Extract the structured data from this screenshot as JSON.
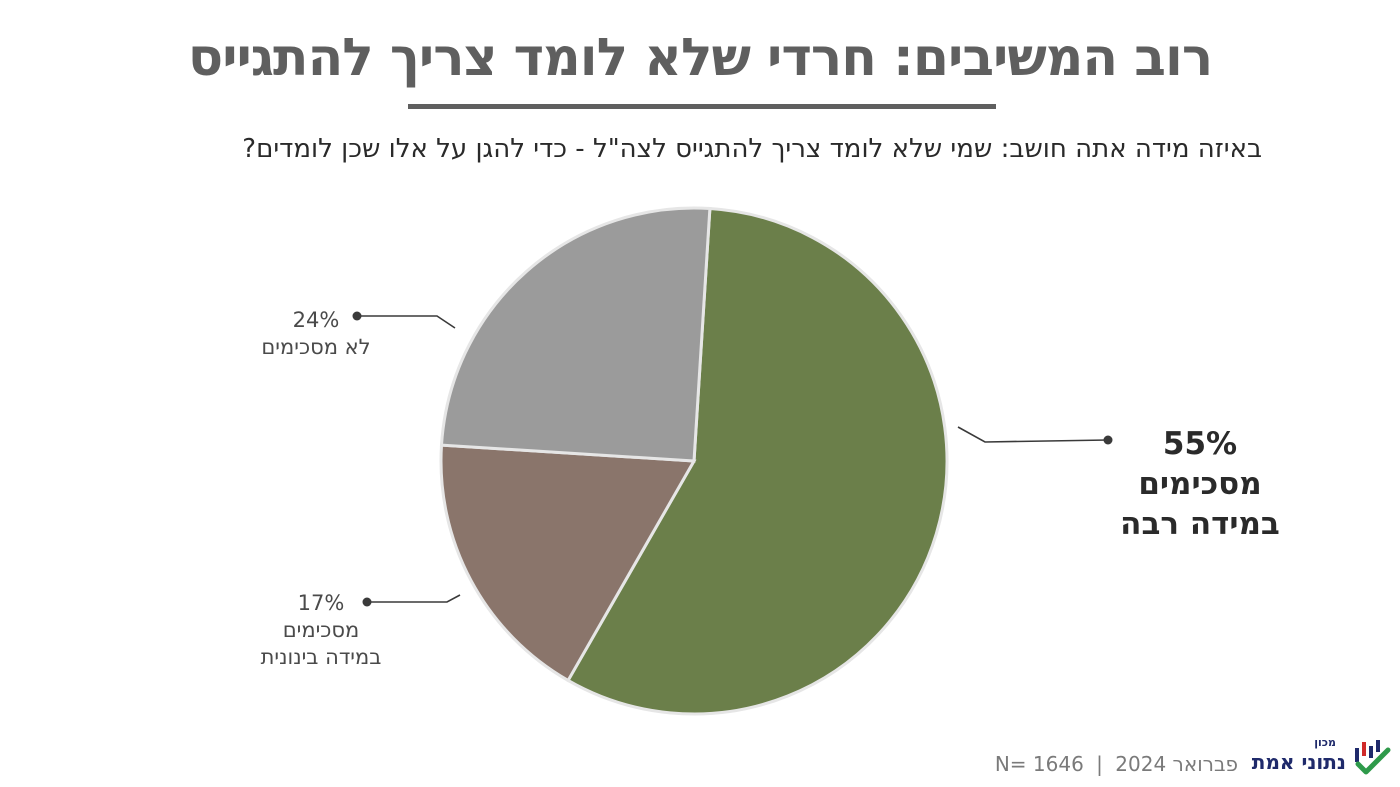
{
  "header": {
    "title": "רוב המשיבים: חרדי שלא לומד צריך להתגייס",
    "question": "באיזה מידה אתה חושב: שמי שלא לומד צריך להתגייס לצה\"ל - כדי להגן על אלו שכן לומדים?"
  },
  "chart_data": {
    "type": "pie",
    "title": "",
    "slices": [
      {
        "label": "מסכימים במידה רבה",
        "value": 55,
        "value_label": "55%",
        "label_lines": [
          "מסכימים",
          "במידה רבה"
        ],
        "color": "#6b7f4a"
      },
      {
        "label": "מסכימים במידה בינונית",
        "value": 17,
        "value_label": "17%",
        "label_lines": [
          "מסכימים",
          "במידה בינונית"
        ],
        "color": "#8a756b"
      },
      {
        "label": "לא מסכימים",
        "value": 24,
        "value_label": "24%",
        "label_lines": [
          "לא מסכימים"
        ],
        "color": "#9b9b9b"
      }
    ],
    "legend": "none",
    "slice_border_color": "#e6e6e6"
  },
  "footer": {
    "sample": "N= 1646",
    "separator": "|",
    "date": "פברואר 2024"
  },
  "logo": {
    "small_text": "מכון",
    "name": "נתוני אמת",
    "mark_icon": "bar-chart-checkmark-icon",
    "colors": {
      "navy": "#1f2a6b",
      "green": "#2e9a4a",
      "red": "#d02a2a"
    }
  }
}
